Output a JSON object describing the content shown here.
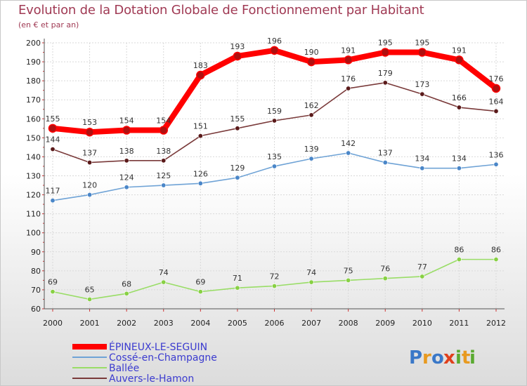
{
  "chart_data": {
    "type": "line",
    "title": "Evolution de la Dotation Globale de Fonctionnement par Habitant",
    "subtitle": "(en € et par an)",
    "xlabel": "",
    "ylabel": "",
    "ylim": [
      60,
      200
    ],
    "ytick_step": 10,
    "grid": true,
    "legend_position": "bottom-left",
    "x": [
      "2000",
      "2001",
      "2002",
      "2003",
      "2004",
      "2005",
      "2006",
      "2007",
      "2008",
      "2009",
      "2010",
      "2011",
      "2012"
    ],
    "series": [
      {
        "name": "ÉPINEUX-LE-SEGUIN",
        "color": "#ff0000",
        "marker_color": "#b01010",
        "emphasis": true,
        "values": [
          155,
          153,
          154,
          154,
          183,
          193,
          196,
          190,
          191,
          195,
          195,
          191,
          176
        ]
      },
      {
        "name": "Cossé-en-Champagne",
        "color": "#6fa3d6",
        "marker_color": "#4a86c8",
        "emphasis": false,
        "values": [
          117,
          120,
          124,
          125,
          126,
          129,
          135,
          139,
          142,
          137,
          134,
          134,
          136
        ]
      },
      {
        "name": "Ballée",
        "color": "#99dd66",
        "marker_color": "#88d044",
        "emphasis": false,
        "values": [
          69,
          65,
          68,
          74,
          69,
          71,
          72,
          74,
          75,
          76,
          77,
          86,
          86
        ]
      },
      {
        "name": "Auvers-le-Hamon",
        "color": "#7a3a3a",
        "marker_color": "#5a1a1a",
        "emphasis": false,
        "values": [
          144,
          137,
          138,
          138,
          151,
          155,
          159,
          162,
          176,
          179,
          173,
          166,
          164
        ]
      }
    ]
  },
  "logo": {
    "text": "Proxiti",
    "letters": [
      "P",
      "r",
      "o",
      "x",
      "i",
      "t",
      "i"
    ],
    "colors": [
      "#3a78c8",
      "#e89a20",
      "#3a78c8",
      "#e0401c",
      "#5aaa30",
      "#e89a20",
      "#5aaa30"
    ]
  }
}
